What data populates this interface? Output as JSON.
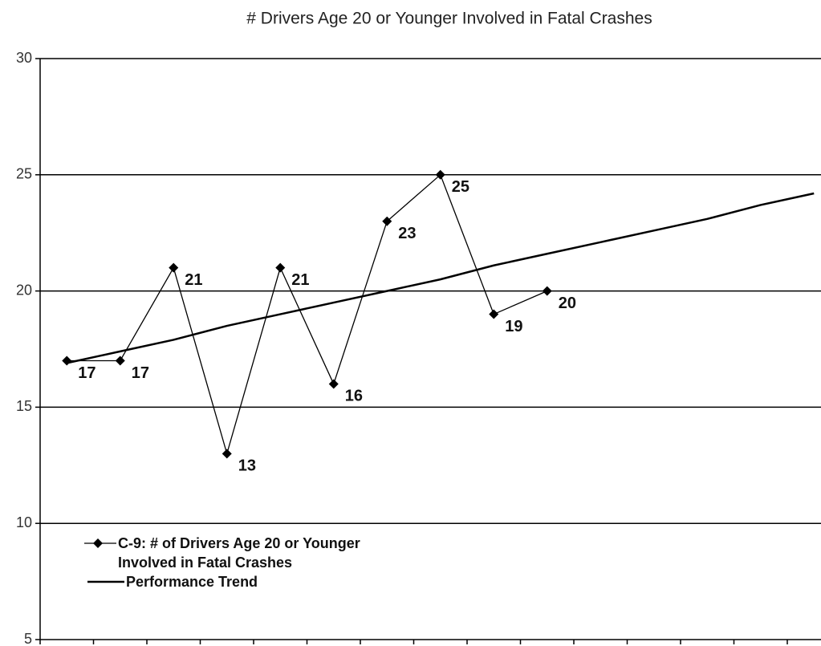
{
  "chart_data": {
    "type": "line",
    "title": "# Drivers Age 20 or Younger Involved in Fatal Crashes",
    "categories": [
      null,
      null,
      null,
      null,
      null,
      null,
      null,
      null,
      null,
      null,
      null,
      null,
      null,
      null,
      null
    ],
    "series": [
      {
        "name": "C-9: # of Drivers Age 20 or Younger Involved in Fatal Crashes",
        "color": "#000000",
        "marker": "diamond",
        "data_labels": true,
        "values": [
          17,
          17,
          21,
          13,
          21,
          16,
          23,
          25,
          19,
          20,
          null,
          null,
          null,
          null,
          null
        ]
      },
      {
        "name": "Performance Trend",
        "color": "#000000",
        "marker": "none",
        "data_labels": false,
        "values": [
          16.9,
          17.4,
          17.9,
          18.5,
          19.0,
          19.5,
          20.0,
          20.5,
          21.1,
          21.6,
          22.1,
          22.6,
          23.1,
          23.7,
          24.2
        ]
      }
    ],
    "ylim": [
      5,
      30
    ],
    "yticks": [
      5,
      10,
      15,
      20,
      25,
      30
    ],
    "grid": true,
    "legend": "lower left"
  }
}
